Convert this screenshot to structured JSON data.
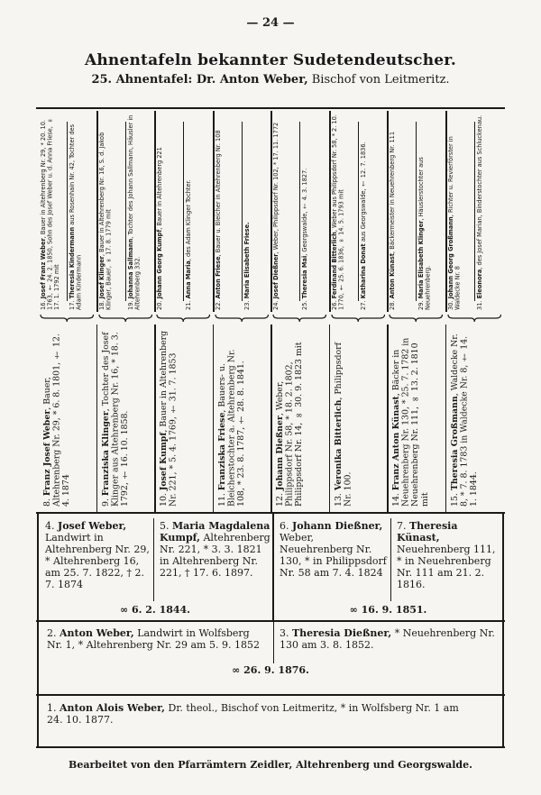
{
  "header": {
    "page_number": "— 24 —",
    "title": "Ahnentafeln bekannter Sudetendeutscher.",
    "subtitle_bold": "25. Ahnentafel: Dr. Anton Weber,",
    "subtitle_rest": " Bischof von Leitmeritz."
  },
  "ancestors_gen5": [
    {
      "num": "16.",
      "name": "Josef Franz Weber",
      "text": ", Bauer in Altehrenberg Nr. 29, * 20. 10. 1763, † 24. 2. 1850, Sohn des Josef Weber u. d. Anna Friese, ∞ 17. 1. 1792 mit"
    },
    {
      "num": "17.",
      "name": "Theresia Kindermann",
      "text": " aus Rosenhain Nr. 42, Tochter des Adam Kindermann"
    },
    {
      "num": "18.",
      "name": "Josef Klinger",
      "text": ", Bauer in Altehrenberg Nr. 16, S. d. Jakob Klinger, Bauer, ∞ 17. 8. 1779 mit"
    },
    {
      "num": "19.",
      "name": "Johanna Sallmann",
      "text": ", Tochter des Johann Sallmann, Häusler in Altehrenberg 332."
    },
    {
      "num": "20.",
      "name": "Johann Georg Kumpf",
      "text": ", Bauer in Altehrenberg 221"
    },
    {
      "num": "21.",
      "name": "Anna Maria",
      "text": ", des Adam Klinger Tochter."
    },
    {
      "num": "22.",
      "name": "Anton Friese",
      "text": ", Bauer u. Bleicher in Altehrenberg Nr. 108"
    },
    {
      "num": "23.",
      "name": "Maria Elisabeth Friese.",
      "text": ""
    },
    {
      "num": "24.",
      "name": "Josef Dießner",
      "text": ", Weber, Philippsdorf Nr. 102, * 17. 11. 1772"
    },
    {
      "num": "25.",
      "name": "Theresia Mai",
      "text": ", Georgswalde, † 4. 3. 1827."
    },
    {
      "num": "26.",
      "name": "Ferdinand Bitterlich",
      "text": ", Weber aus Philippsdorf Nr. 58, * 2. 10. 1770, † 25. 6. 1836, ∞ 14. 5. 1793 mit"
    },
    {
      "num": "27.",
      "name": "Katharina Donat",
      "text": " aus Georgswalde, † 12. 7. 1836."
    },
    {
      "num": "28.",
      "name": "Anton Künast",
      "text": ", Bäckermeister in Neuehrenberg Nr. 111"
    },
    {
      "num": "29.",
      "name": "Maria Elisabeth Klinger",
      "text": ", Häuslerstochter aus Neuehrenberg."
    },
    {
      "num": "30.",
      "name": "Johann Georg Großmann",
      "text": ", Richter u. Revierförster in Waldecke Nr. 8"
    },
    {
      "num": "31.",
      "name": "Eleonora",
      "text": ", des Josef Marian, Binderstochter aus Schluckenau."
    }
  ],
  "ancestors_gen4": [
    {
      "num": "8.",
      "name": "Franz Josef Weber",
      "text": ", Bauer, Altehrenberg Nr. 29, * 6. 8. 1801, † 12. 4. 1874"
    },
    {
      "num": "9.",
      "name": "Franziska Klinger",
      "text": ", Tochter des Josef Klinger aus Altehrenberg Nr. 16, * 18. 3. 1792, † 16. 10. 1858."
    },
    {
      "num": "10.",
      "name": "Josef Kumpf",
      "text": ", Bauer in Altehrenberg Nr. 221, * 5. 4. 1769, † 31. 7. 1853"
    },
    {
      "num": "11.",
      "name": "Franziska Friese",
      "text": ", Bauers- u. Bleicherstochter a. Altehrenberg Nr. 108, * 23. 8. 1787, † 28. 8. 1841."
    },
    {
      "num": "12.",
      "name": "Johann Dießner",
      "text": ", Weber, Philippsdorf Nr. 58, * 18. 2. 1802, Philippsdorf Nr. 14, ∞ 30. 9. 1823 mit"
    },
    {
      "num": "13.",
      "name": "Veronika Bitterlich",
      "text": ", Philippsdorf Nr. 100."
    },
    {
      "num": "14.",
      "name": "Franz Anton Künast",
      "text": ", Bäcker in Neuehrenberg Nr. 130, * 25. 7. 1782 in Neuehrenberg Nr. 111, ∞ 13. 2. 1810 mit"
    },
    {
      "num": "15.",
      "name": "Theresia Großmann",
      "text": ", Waldecke Nr. 8, * 7. 8. 1783 in Waldecke Nr. 8, † 14. 1. 1844."
    }
  ],
  "gen3": [
    {
      "num": "4.",
      "name": "Josef Weber,",
      "text": " Landwirt in Altehrenberg Nr. 29, * Altehrenberg 16, am 25. 7. 1822, † 2. 7. 1874"
    },
    {
      "num": "5.",
      "name": "Maria Magdalena Kumpf,",
      "text": " Altehrenberg Nr. 221, * 3. 3. 1821 in Altehrenberg Nr. 221, † 17. 6. 1897."
    },
    {
      "num": "6.",
      "name": "Johann Dießner,",
      "text": " Weber, Neuehrenberg Nr. 130, * in Philippsdorf Nr. 58 am 7. 4. 1824"
    },
    {
      "num": "7.",
      "name": "Theresia Künast,",
      "text": " Neuehrenberg 111, * in Neuehrenberg Nr. 111 am 21. 2. 1816."
    }
  ],
  "gen3_marriages": [
    "∞ 6. 2. 1844.",
    "∞ 16. 9. 1851."
  ],
  "gen2": [
    {
      "num": "2.",
      "name": "Anton Weber,",
      "text": " Landwirt in Wolfsberg Nr. 1, * Altehrenberg Nr. 29 am 5. 9. 1852"
    },
    {
      "num": "3.",
      "name": "Theresia Dießner,",
      "text": " * Neuehrenberg Nr. 130 am 3. 8. 1852."
    }
  ],
  "gen2_marriage": "∞ 26. 9. 1876.",
  "proband": {
    "num": "1.",
    "name": "Anton Alois Weber,",
    "text": " Dr. theol., Bischof von Leitmeritz, * in Wolfsberg Nr. 1 am 24. 10. 1877."
  },
  "footer": "Bearbeitet von den Pfarrämtern Zeidler, Altehrenberg und Georgswalde."
}
